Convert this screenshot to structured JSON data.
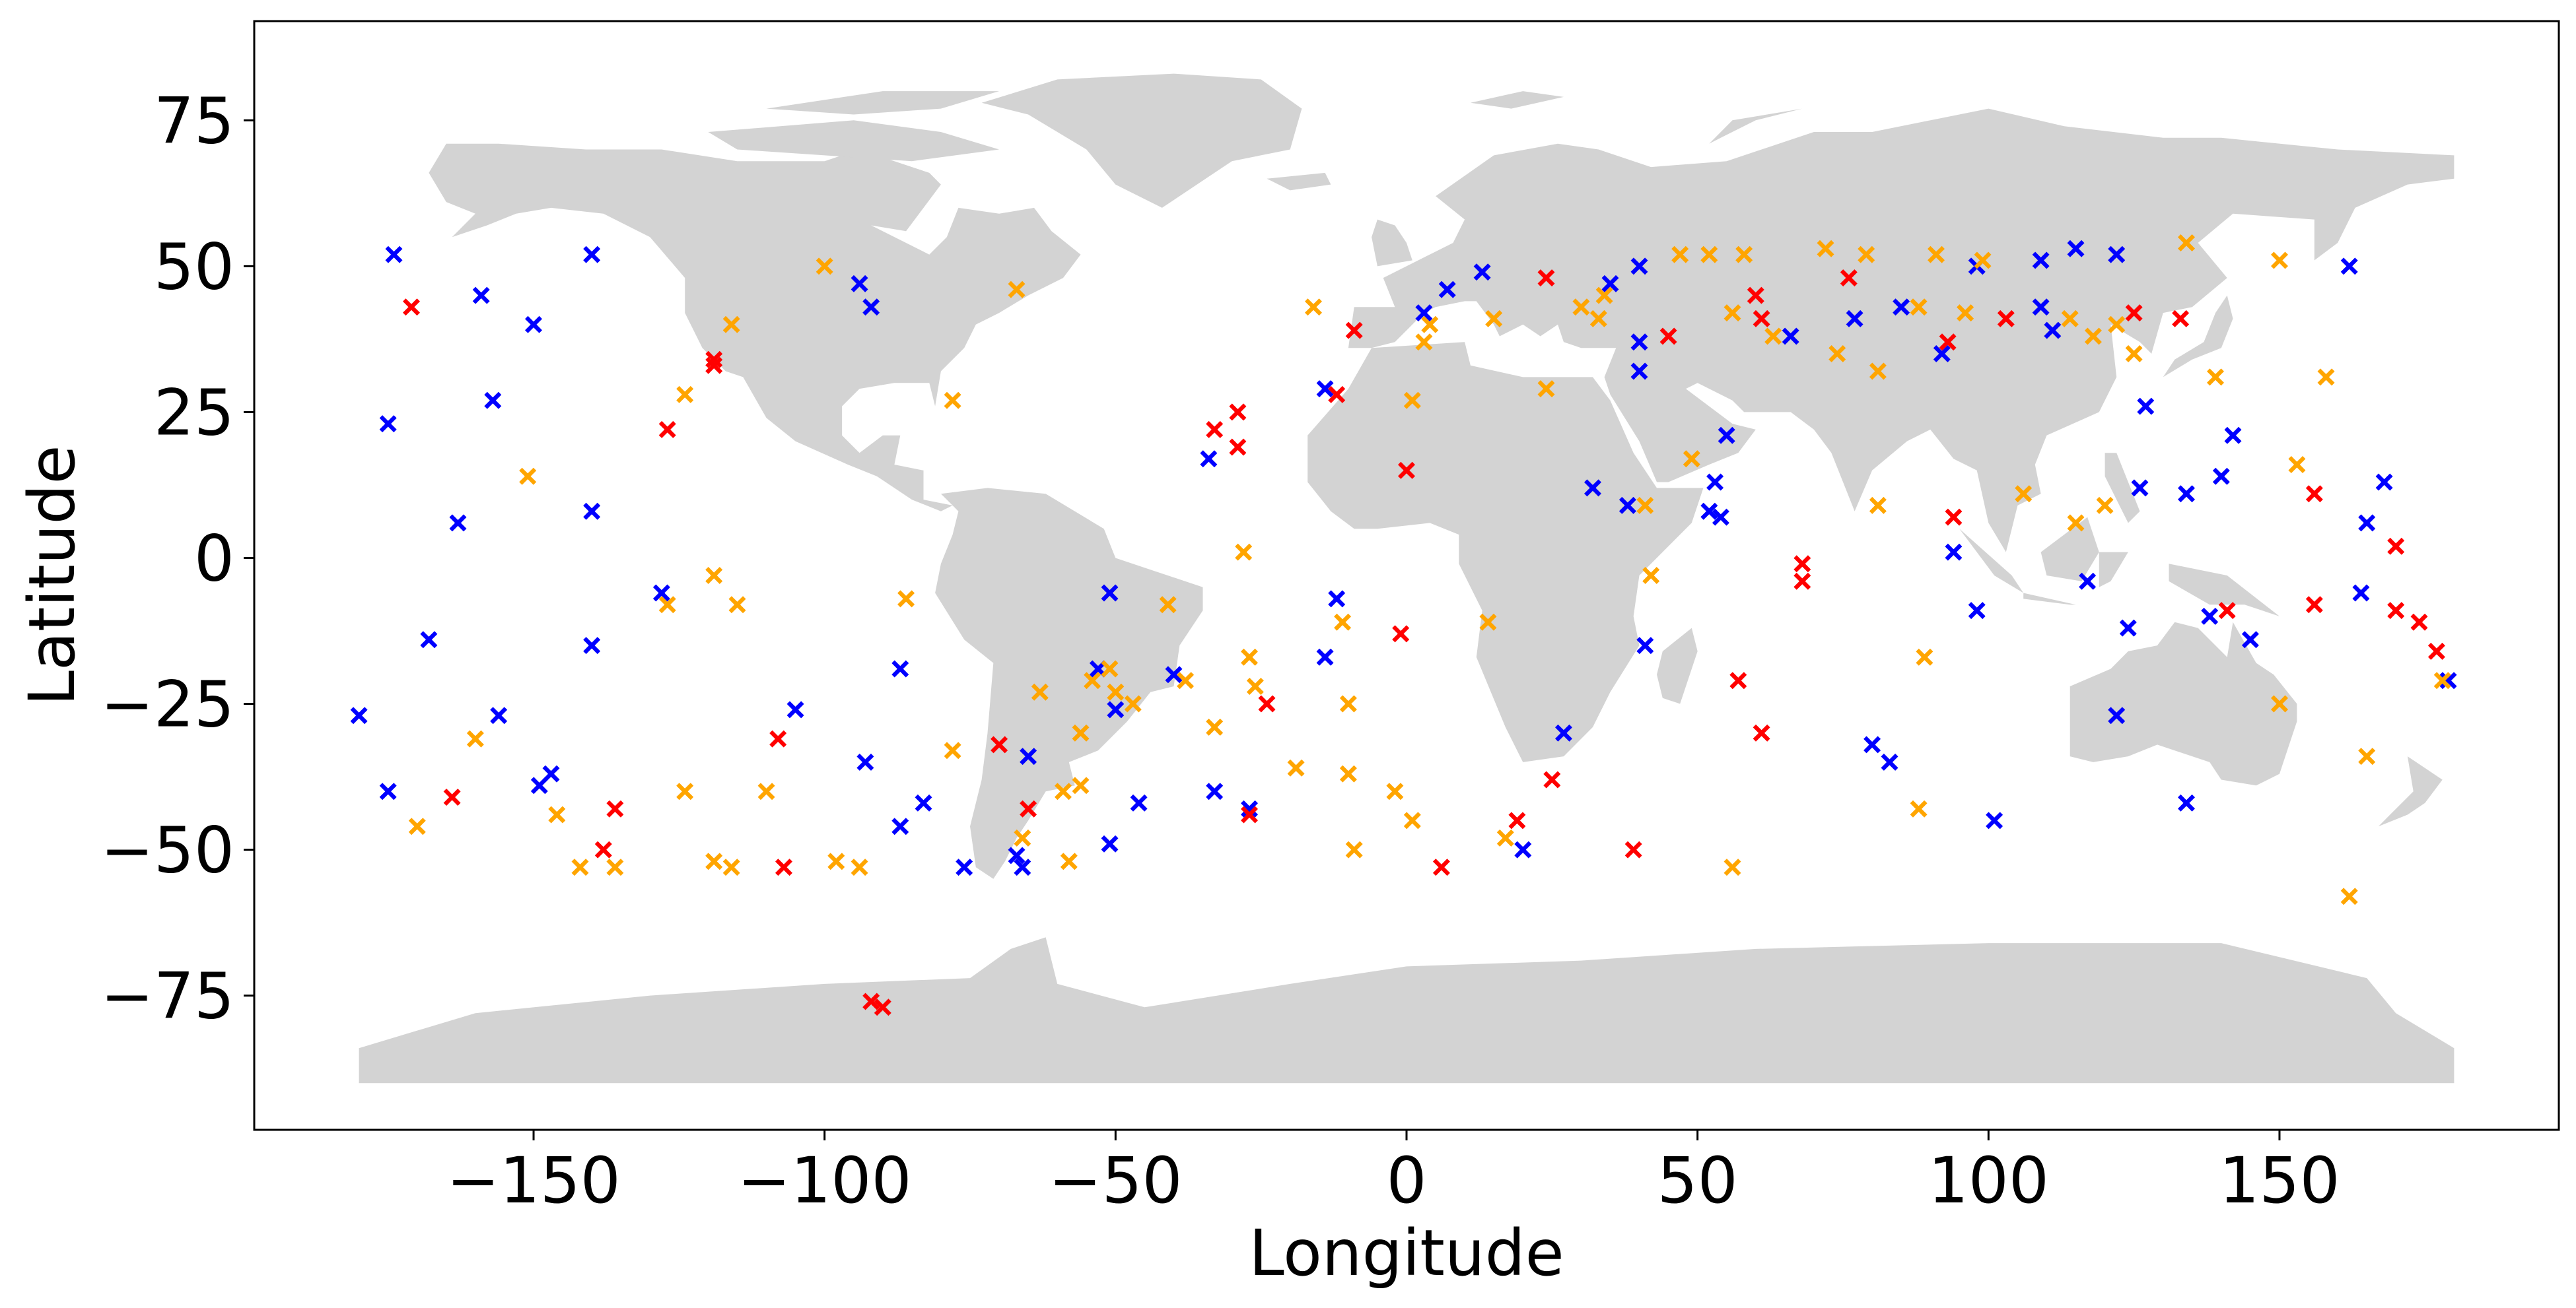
{
  "chart_data": {
    "type": "scatter",
    "title": "",
    "xlabel": "Longitude",
    "ylabel": "Latitude",
    "xlim": [
      -198,
      198
    ],
    "ylim": [
      -98,
      92
    ],
    "x_ticks": [
      -150,
      -100,
      -50,
      0,
      50,
      100,
      150
    ],
    "y_ticks": [
      -75,
      -50,
      -25,
      0,
      25,
      50,
      75
    ],
    "x_tick_labels": [
      "−150",
      "−100",
      "−50",
      "0",
      "50",
      "100",
      "150"
    ],
    "y_tick_labels": [
      "−75",
      "−50",
      "−25",
      "0",
      "25",
      "50",
      "75"
    ],
    "grid": false,
    "legend": "none",
    "marker": "X",
    "land_color": "#d3d3d3",
    "series": [
      {
        "color": "#0000ff",
        "points": [
          [
            -174,
            52
          ],
          [
            -175,
            23
          ],
          [
            -180,
            -27
          ],
          [
            -175,
            -40
          ],
          [
            -168,
            -14
          ],
          [
            -163,
            6
          ],
          [
            -159,
            45
          ],
          [
            -157,
            27
          ],
          [
            -156,
            -27
          ],
          [
            -150,
            40
          ],
          [
            -149,
            -39
          ],
          [
            -147,
            -37
          ],
          [
            -140,
            52
          ],
          [
            -140,
            8
          ],
          [
            -140,
            -15
          ],
          [
            -128,
            -6
          ],
          [
            -105,
            -26
          ],
          [
            -94,
            47
          ],
          [
            -92,
            43
          ],
          [
            -93,
            -35
          ],
          [
            -87,
            -19
          ],
          [
            -87,
            -46
          ],
          [
            -83,
            -42
          ],
          [
            -76,
            -53
          ],
          [
            -67,
            -51
          ],
          [
            -66,
            -53
          ],
          [
            -65,
            -34
          ],
          [
            -53,
            -19
          ],
          [
            -51,
            -6
          ],
          [
            -51,
            -49
          ],
          [
            -50,
            -26
          ],
          [
            -46,
            -42
          ],
          [
            -40,
            -20
          ],
          [
            -34,
            17
          ],
          [
            -33,
            -40
          ],
          [
            -27,
            -43
          ],
          [
            -14,
            29
          ],
          [
            -14,
            -17
          ],
          [
            -12,
            -7
          ],
          [
            3,
            42
          ],
          [
            7,
            46
          ],
          [
            13,
            49
          ],
          [
            20,
            -50
          ],
          [
            27,
            -30
          ],
          [
            32,
            12
          ],
          [
            35,
            47
          ],
          [
            38,
            9
          ],
          [
            40,
            50
          ],
          [
            40,
            37
          ],
          [
            40,
            32
          ],
          [
            41,
            -15
          ],
          [
            52,
            8
          ],
          [
            53,
            13
          ],
          [
            54,
            7
          ],
          [
            55,
            21
          ],
          [
            66,
            38
          ],
          [
            77,
            41
          ],
          [
            80,
            -32
          ],
          [
            83,
            -35
          ],
          [
            85,
            43
          ],
          [
            92,
            35
          ],
          [
            94,
            1
          ],
          [
            98,
            50
          ],
          [
            98,
            -9
          ],
          [
            101,
            -45
          ],
          [
            109,
            51
          ],
          [
            109,
            43
          ],
          [
            111,
            39
          ],
          [
            115,
            53
          ],
          [
            117,
            -4
          ],
          [
            122,
            52
          ],
          [
            122,
            -27
          ],
          [
            124,
            -12
          ],
          [
            126,
            12
          ],
          [
            127,
            26
          ],
          [
            134,
            11
          ],
          [
            134,
            -42
          ],
          [
            138,
            -10
          ],
          [
            140,
            14
          ],
          [
            142,
            21
          ],
          [
            145,
            -14
          ],
          [
            162,
            50
          ],
          [
            164,
            -6
          ],
          [
            165,
            6
          ],
          [
            168,
            13
          ],
          [
            179,
            -21
          ]
        ]
      },
      {
        "color": "#ff0000",
        "points": [
          [
            -171,
            43
          ],
          [
            -164,
            -41
          ],
          [
            -138,
            -50
          ],
          [
            -136,
            -43
          ],
          [
            -127,
            22
          ],
          [
            -119,
            34
          ],
          [
            -119,
            33
          ],
          [
            -108,
            -31
          ],
          [
            -107,
            -53
          ],
          [
            -92,
            -76
          ],
          [
            -90,
            -77
          ],
          [
            -70,
            -32
          ],
          [
            -65,
            -43
          ],
          [
            -33,
            22
          ],
          [
            -29,
            25
          ],
          [
            -29,
            19
          ],
          [
            -27,
            -44
          ],
          [
            -24,
            -25
          ],
          [
            -12,
            28
          ],
          [
            -9,
            39
          ],
          [
            -1,
            -13
          ],
          [
            0,
            15
          ],
          [
            6,
            -53
          ],
          [
            19,
            -45
          ],
          [
            24,
            48
          ],
          [
            25,
            -38
          ],
          [
            39,
            -50
          ],
          [
            45,
            38
          ],
          [
            57,
            -21
          ],
          [
            60,
            45
          ],
          [
            61,
            41
          ],
          [
            61,
            -30
          ],
          [
            68,
            -1
          ],
          [
            68,
            -4
          ],
          [
            76,
            48
          ],
          [
            93,
            37
          ],
          [
            94,
            7
          ],
          [
            103,
            41
          ],
          [
            125,
            42
          ],
          [
            133,
            41
          ],
          [
            141,
            -9
          ],
          [
            156,
            11
          ],
          [
            156,
            -8
          ],
          [
            170,
            2
          ],
          [
            170,
            -9
          ],
          [
            174,
            -11
          ],
          [
            177,
            -16
          ]
        ]
      },
      {
        "color": "#ffa500",
        "points": [
          [
            -170,
            -46
          ],
          [
            -160,
            -31
          ],
          [
            -151,
            14
          ],
          [
            -146,
            -44
          ],
          [
            -142,
            -53
          ],
          [
            -136,
            -53
          ],
          [
            -127,
            -8
          ],
          [
            -124,
            28
          ],
          [
            -124,
            -40
          ],
          [
            -119,
            -3
          ],
          [
            -119,
            -52
          ],
          [
            -116,
            40
          ],
          [
            -115,
            -8
          ],
          [
            -116,
            -53
          ],
          [
            -110,
            -40
          ],
          [
            -100,
            50
          ],
          [
            -98,
            -52
          ],
          [
            -94,
            -53
          ],
          [
            -86,
            -7
          ],
          [
            -78,
            27
          ],
          [
            -78,
            -33
          ],
          [
            -67,
            46
          ],
          [
            -66,
            -48
          ],
          [
            -63,
            -23
          ],
          [
            -59,
            -40
          ],
          [
            -58,
            -52
          ],
          [
            -56,
            -30
          ],
          [
            -56,
            -39
          ],
          [
            -54,
            -21
          ],
          [
            -51,
            -19
          ],
          [
            -50,
            -23
          ],
          [
            -47,
            -25
          ],
          [
            -41,
            -8
          ],
          [
            -38,
            -21
          ],
          [
            -33,
            -29
          ],
          [
            -28,
            1
          ],
          [
            -27,
            -17
          ],
          [
            -26,
            -22
          ],
          [
            -19,
            -36
          ],
          [
            -16,
            43
          ],
          [
            -11,
            -11
          ],
          [
            -10,
            -25
          ],
          [
            -10,
            -37
          ],
          [
            -9,
            -50
          ],
          [
            -2,
            -40
          ],
          [
            1,
            -45
          ],
          [
            1,
            27
          ],
          [
            3,
            37
          ],
          [
            4,
            40
          ],
          [
            14,
            -11
          ],
          [
            15,
            41
          ],
          [
            17,
            -48
          ],
          [
            24,
            29
          ],
          [
            30,
            43
          ],
          [
            33,
            41
          ],
          [
            34,
            45
          ],
          [
            41,
            9
          ],
          [
            42,
            -3
          ],
          [
            47,
            52
          ],
          [
            49,
            17
          ],
          [
            52,
            52
          ],
          [
            56,
            -53
          ],
          [
            56,
            42
          ],
          [
            58,
            52
          ],
          [
            63,
            38
          ],
          [
            72,
            53
          ],
          [
            74,
            35
          ],
          [
            79,
            52
          ],
          [
            81,
            32
          ],
          [
            81,
            9
          ],
          [
            88,
            43
          ],
          [
            88,
            -43
          ],
          [
            89,
            -17
          ],
          [
            91,
            52
          ],
          [
            96,
            42
          ],
          [
            99,
            51
          ],
          [
            106,
            11
          ],
          [
            114,
            41
          ],
          [
            115,
            6
          ],
          [
            118,
            38
          ],
          [
            120,
            9
          ],
          [
            122,
            40
          ],
          [
            125,
            35
          ],
          [
            134,
            54
          ],
          [
            139,
            31
          ],
          [
            150,
            51
          ],
          [
            150,
            -25
          ],
          [
            153,
            16
          ],
          [
            158,
            31
          ],
          [
            162,
            -58
          ],
          [
            165,
            -34
          ],
          [
            178,
            -21
          ]
        ]
      }
    ]
  }
}
